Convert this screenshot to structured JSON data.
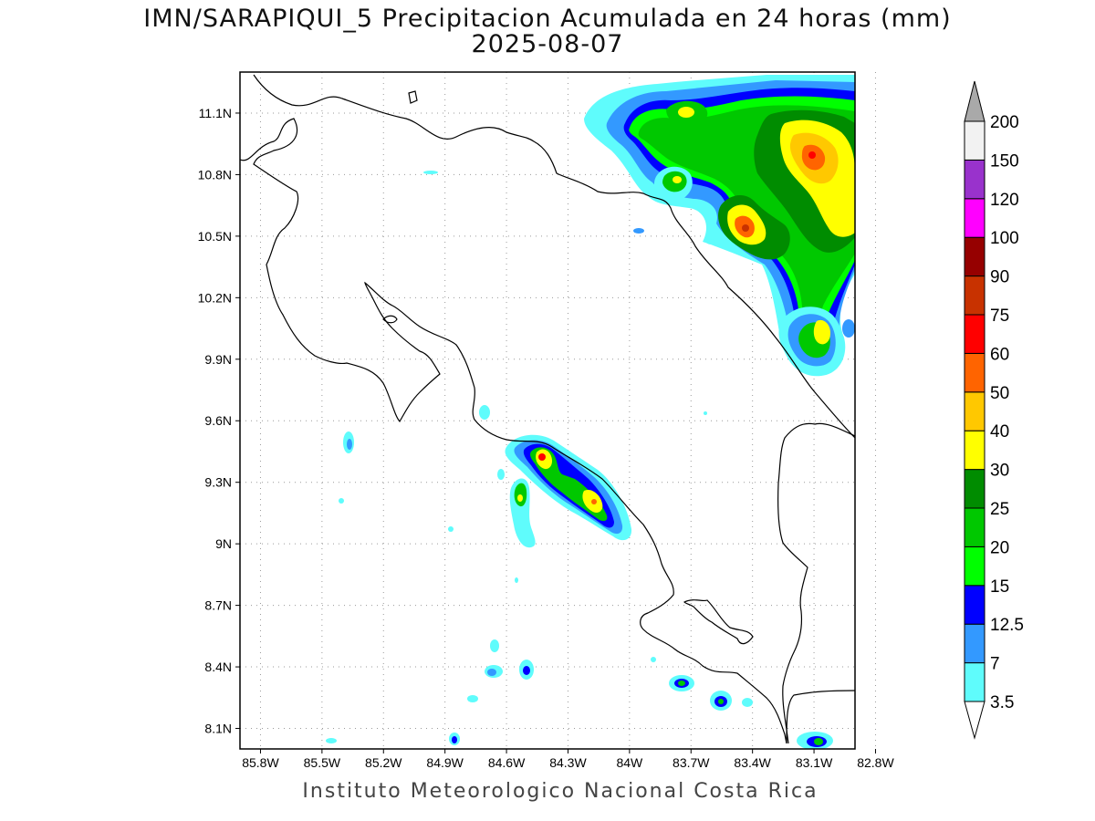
{
  "title": {
    "line1": "IMN/SARAPIQUI_5 Precipitacion Acumulada en 24 horas (mm)",
    "line2": "2025-08-07"
  },
  "footer": "Instituto Meteorologico Nacional Costa Rica",
  "map": {
    "lon_range": [
      -85.9,
      -82.9
    ],
    "lat_range": [
      8.0,
      11.3
    ],
    "lon_ticks": [
      {
        "value": -85.8,
        "label": "85.8W"
      },
      {
        "value": -85.5,
        "label": "85.5W"
      },
      {
        "value": -85.2,
        "label": "85.2W"
      },
      {
        "value": -84.9,
        "label": "84.9W"
      },
      {
        "value": -84.6,
        "label": "84.6W"
      },
      {
        "value": -84.3,
        "label": "84.3W"
      },
      {
        "value": -84.0,
        "label": "84W"
      },
      {
        "value": -83.7,
        "label": "83.7W"
      },
      {
        "value": -83.4,
        "label": "83.4W"
      },
      {
        "value": -83.1,
        "label": "83.1W"
      },
      {
        "value": -82.8,
        "label": "82.8W"
      }
    ],
    "lat_ticks": [
      {
        "value": 11.1,
        "label": "11.1N"
      },
      {
        "value": 10.8,
        "label": "10.8N"
      },
      {
        "value": 10.5,
        "label": "10.5N"
      },
      {
        "value": 10.2,
        "label": "10.2N"
      },
      {
        "value": 9.9,
        "label": "9.9N"
      },
      {
        "value": 9.6,
        "label": "9.6N"
      },
      {
        "value": 9.3,
        "label": "9.3N"
      },
      {
        "value": 9.0,
        "label": "9N"
      },
      {
        "value": 8.7,
        "label": "8.7N"
      },
      {
        "value": 8.4,
        "label": "8.4N"
      },
      {
        "value": 8.1,
        "label": "8.1N"
      }
    ],
    "grid": true
  },
  "colorbar": {
    "levels": [
      "3.5",
      "7",
      "12.5",
      "15",
      "20",
      "25",
      "30",
      "40",
      "50",
      "60",
      "75",
      "90",
      "100",
      "120",
      "150",
      "200"
    ],
    "colors": [
      "#5ffcfc",
      "#3399ff",
      "#0000ff",
      "#00ff00",
      "#00c800",
      "#008c00",
      "#ffff00",
      "#ffc800",
      "#ff6400",
      "#ff0000",
      "#c83200",
      "#960000",
      "#ff00ff",
      "#9932cc",
      "#f2f2f2"
    ],
    "top_triangle_color": "#a9a9a9",
    "bottom_triangle_color": "#ffffff"
  },
  "precip_cells": [
    {
      "lon": -83.55,
      "lat": 11.1,
      "level": 5
    },
    {
      "lon": -83.4,
      "lat": 11.12,
      "level": 6
    },
    {
      "lon": -83.55,
      "lat": 10.8,
      "level": 5
    },
    {
      "lon": -83.15,
      "lat": 10.58,
      "level": 9
    },
    {
      "lon": -83.0,
      "lat": 10.55,
      "level": 6
    },
    {
      "lon": -82.9,
      "lat": 10.97,
      "level": 8
    },
    {
      "lon": -82.95,
      "lat": 10.8,
      "level": 7
    },
    {
      "lon": -82.75,
      "lat": 10.9,
      "level": 7
    },
    {
      "lon": -82.9,
      "lat": 10.65,
      "level": 6
    },
    {
      "lon": -82.8,
      "lat": 10.02,
      "level": 6
    },
    {
      "lon": -84.31,
      "lat": 9.42,
      "level": 9
    },
    {
      "lon": -84.0,
      "lat": 9.22,
      "level": 7
    },
    {
      "lon": -84.38,
      "lat": 9.22,
      "level": 6
    },
    {
      "lon": -85.47,
      "lat": 9.5,
      "level": 1
    },
    {
      "lon": -84.4,
      "lat": 8.38,
      "level": 2
    },
    {
      "lon": -84.53,
      "lat": 8.37,
      "level": 2
    },
    {
      "lon": -83.5,
      "lat": 8.3,
      "level": 4
    },
    {
      "lon": -83.25,
      "lat": 8.22,
      "level": 4
    },
    {
      "lon": -82.83,
      "lat": 8.04,
      "level": 4
    },
    {
      "lon": -84.87,
      "lat": 8.04,
      "level": 2
    }
  ]
}
